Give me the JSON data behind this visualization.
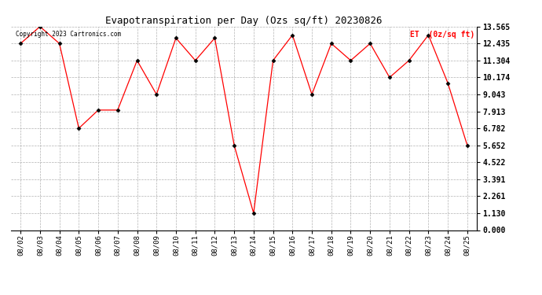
{
  "title": "Evapotranspiration per Day (Ozs sq/ft) 20230826",
  "legend_label": "ET  (0z/sq ft)",
  "copyright_text": "Copyright 2023 Cartronics.com",
  "dates": [
    "08/02",
    "08/03",
    "08/04",
    "08/05",
    "08/06",
    "08/07",
    "08/08",
    "08/09",
    "08/10",
    "08/11",
    "08/12",
    "08/13",
    "08/14",
    "08/15",
    "08/16",
    "08/17",
    "08/18",
    "08/19",
    "08/20",
    "08/21",
    "08/22",
    "08/23",
    "08/24",
    "08/25"
  ],
  "values": [
    12.435,
    13.565,
    12.435,
    6.782,
    8.0,
    8.0,
    11.304,
    9.043,
    12.8,
    11.304,
    12.8,
    5.652,
    1.13,
    11.304,
    13.0,
    9.043,
    12.435,
    11.304,
    12.435,
    10.174,
    11.304,
    13.0,
    9.8,
    5.652
  ],
  "line_color": "red",
  "marker_color": "black",
  "bg_color": "white",
  "grid_color": "#aaaaaa",
  "yticks": [
    0.0,
    1.13,
    2.261,
    3.391,
    4.522,
    5.652,
    6.782,
    7.913,
    9.043,
    10.174,
    11.304,
    12.435,
    13.565
  ],
  "ylim": [
    0.0,
    13.565
  ],
  "title_fontsize": 9,
  "legend_fontsize": 7,
  "copyright_fontsize": 5.5,
  "tick_fontsize": 6.5,
  "ytick_fontsize": 7
}
